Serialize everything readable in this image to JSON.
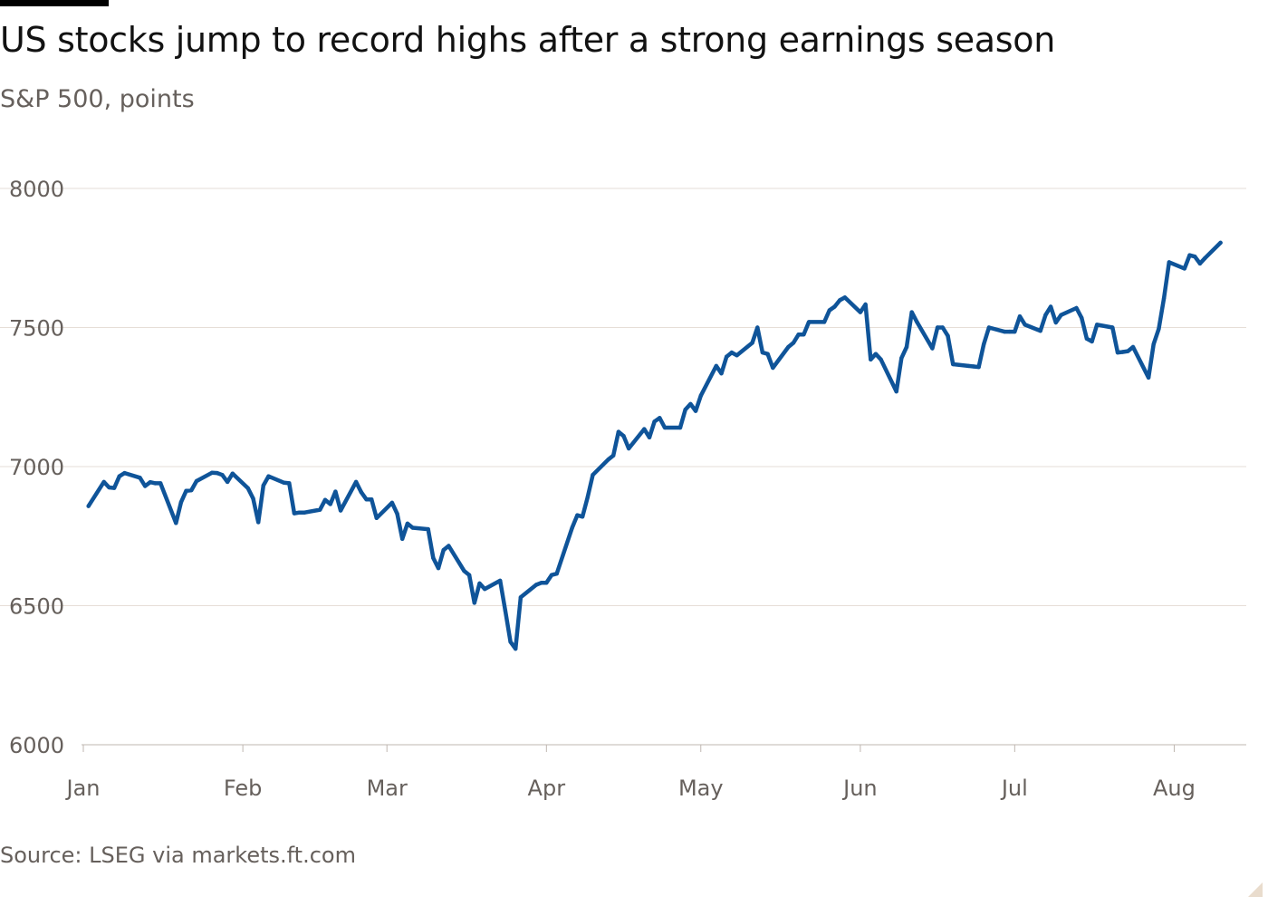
{
  "header": {
    "title": "US stocks jump to record highs after a strong earnings season",
    "subtitle": "S&P 500, points"
  },
  "footer": {
    "source": "Source: LSEG via markets.ft.com"
  },
  "colors": {
    "line": "#0f5499",
    "grid": "#e6ded7",
    "axis_text": "#66605c",
    "title_text": "#121212"
  },
  "chart_data": {
    "type": "line",
    "title": "US stocks jump to record highs after a strong earnings season",
    "subtitle": "S&P 500, points",
    "ylim": [
      6000,
      8000
    ],
    "yticks": [
      6000,
      6500,
      7000,
      7500,
      8000
    ],
    "xlim": [
      "2026-01-01",
      "2026-08-15"
    ],
    "xticks": [
      {
        "label": "Jan",
        "date": "2026-01-01"
      },
      {
        "label": "Feb",
        "date": "2026-02-01"
      },
      {
        "label": "Mar",
        "date": "2026-03-01"
      },
      {
        "label": "Apr",
        "date": "2026-04-01"
      },
      {
        "label": "May",
        "date": "2026-05-01"
      },
      {
        "label": "Jun",
        "date": "2026-06-01"
      },
      {
        "label": "Jul",
        "date": "2026-07-01"
      },
      {
        "label": "Aug",
        "date": "2026-08-01"
      }
    ],
    "grid": "horizontal",
    "legend": "none",
    "series": [
      {
        "points": [
          [
            "2026-01-02",
            6858
          ],
          [
            "2026-01-05",
            6945
          ],
          [
            "2026-01-06",
            6925
          ],
          [
            "2026-01-07",
            6923
          ],
          [
            "2026-01-08",
            6965
          ],
          [
            "2026-01-09",
            6977
          ],
          [
            "2026-01-12",
            6960
          ],
          [
            "2026-01-13",
            6930
          ],
          [
            "2026-01-14",
            6944
          ],
          [
            "2026-01-15",
            6940
          ],
          [
            "2026-01-16",
            6940
          ],
          [
            "2026-01-19",
            6797
          ],
          [
            "2026-01-20",
            6872
          ],
          [
            "2026-01-21",
            6913
          ],
          [
            "2026-01-22",
            6915
          ],
          [
            "2026-01-23",
            6948
          ],
          [
            "2026-01-26",
            6978
          ],
          [
            "2026-01-27",
            6977
          ],
          [
            "2026-01-28",
            6970
          ],
          [
            "2026-01-29",
            6945
          ],
          [
            "2026-01-30",
            6975
          ],
          [
            "2026-02-02",
            6922
          ],
          [
            "2026-02-03",
            6885
          ],
          [
            "2026-02-04",
            6800
          ],
          [
            "2026-02-05",
            6932
          ],
          [
            "2026-02-06",
            6965
          ],
          [
            "2026-02-09",
            6942
          ],
          [
            "2026-02-10",
            6940
          ],
          [
            "2026-02-11",
            6832
          ],
          [
            "2026-02-12",
            6835
          ],
          [
            "2026-02-13",
            6835
          ],
          [
            "2026-02-16",
            6845
          ],
          [
            "2026-02-17",
            6880
          ],
          [
            "2026-02-18",
            6865
          ],
          [
            "2026-02-19",
            6910
          ],
          [
            "2026-02-20",
            6842
          ],
          [
            "2026-02-23",
            6945
          ],
          [
            "2026-02-24",
            6908
          ],
          [
            "2026-02-25",
            6882
          ],
          [
            "2026-02-26",
            6882
          ],
          [
            "2026-02-27",
            6815
          ],
          [
            "2026-03-02",
            6870
          ],
          [
            "2026-03-03",
            6830
          ],
          [
            "2026-03-04",
            6740
          ],
          [
            "2026-03-05",
            6795
          ],
          [
            "2026-03-06",
            6780
          ],
          [
            "2026-03-09",
            6775
          ],
          [
            "2026-03-10",
            6672
          ],
          [
            "2026-03-11",
            6635
          ],
          [
            "2026-03-12",
            6700
          ],
          [
            "2026-03-13",
            6715
          ],
          [
            "2026-03-16",
            6625
          ],
          [
            "2026-03-17",
            6610
          ],
          [
            "2026-03-18",
            6510
          ],
          [
            "2026-03-19",
            6580
          ],
          [
            "2026-03-20",
            6560
          ],
          [
            "2026-03-23",
            6590
          ],
          [
            "2026-03-24",
            6482
          ],
          [
            "2026-03-25",
            6370
          ],
          [
            "2026-03-26",
            6345
          ],
          [
            "2026-03-27",
            6530
          ],
          [
            "2026-03-30",
            6575
          ],
          [
            "2026-03-31",
            6582
          ],
          [
            "2026-04-01",
            6582
          ],
          [
            "2026-04-02",
            6610
          ],
          [
            "2026-04-03",
            6615
          ],
          [
            "2026-04-06",
            6780
          ],
          [
            "2026-04-07",
            6825
          ],
          [
            "2026-04-08",
            6820
          ],
          [
            "2026-04-09",
            6890
          ],
          [
            "2026-04-10",
            6970
          ],
          [
            "2026-04-13",
            7025
          ],
          [
            "2026-04-14",
            7040
          ],
          [
            "2026-04-15",
            7125
          ],
          [
            "2026-04-16",
            7110
          ],
          [
            "2026-04-17",
            7065
          ],
          [
            "2026-04-20",
            7135
          ],
          [
            "2026-04-21",
            7105
          ],
          [
            "2026-04-22",
            7162
          ],
          [
            "2026-04-23",
            7175
          ],
          [
            "2026-04-24",
            7140
          ],
          [
            "2026-04-27",
            7140
          ],
          [
            "2026-04-28",
            7205
          ],
          [
            "2026-04-29",
            7225
          ],
          [
            "2026-04-30",
            7200
          ],
          [
            "2026-05-01",
            7255
          ],
          [
            "2026-05-04",
            7362
          ],
          [
            "2026-05-05",
            7335
          ],
          [
            "2026-05-06",
            7395
          ],
          [
            "2026-05-07",
            7410
          ],
          [
            "2026-05-08",
            7400
          ],
          [
            "2026-05-11",
            7445
          ],
          [
            "2026-05-12",
            7500
          ],
          [
            "2026-05-13",
            7410
          ],
          [
            "2026-05-14",
            7405
          ],
          [
            "2026-05-15",
            7355
          ],
          [
            "2026-05-18",
            7430
          ],
          [
            "2026-05-19",
            7445
          ],
          [
            "2026-05-20",
            7475
          ],
          [
            "2026-05-21",
            7475
          ],
          [
            "2026-05-22",
            7520
          ],
          [
            "2026-05-25",
            7520
          ],
          [
            "2026-05-26",
            7562
          ],
          [
            "2026-05-27",
            7575
          ],
          [
            "2026-05-28",
            7598
          ],
          [
            "2026-05-29",
            7608
          ],
          [
            "2026-06-01",
            7555
          ],
          [
            "2026-06-02",
            7583
          ],
          [
            "2026-06-03",
            7385
          ],
          [
            "2026-06-04",
            7405
          ],
          [
            "2026-06-05",
            7385
          ],
          [
            "2026-06-08",
            7270
          ],
          [
            "2026-06-09",
            7390
          ],
          [
            "2026-06-10",
            7430
          ],
          [
            "2026-06-11",
            7555
          ],
          [
            "2026-06-12",
            7520
          ],
          [
            "2026-06-15",
            7425
          ],
          [
            "2026-06-16",
            7500
          ],
          [
            "2026-06-17",
            7500
          ],
          [
            "2026-06-18",
            7470
          ],
          [
            "2026-06-19",
            7368
          ],
          [
            "2026-06-22",
            7362
          ],
          [
            "2026-06-23",
            7360
          ],
          [
            "2026-06-24",
            7358
          ],
          [
            "2026-06-25",
            7440
          ],
          [
            "2026-06-26",
            7500
          ],
          [
            "2026-06-29",
            7485
          ],
          [
            "2026-06-30",
            7485
          ],
          [
            "2026-07-01",
            7485
          ],
          [
            "2026-07-02",
            7540
          ],
          [
            "2026-07-03",
            7510
          ],
          [
            "2026-07-06",
            7488
          ],
          [
            "2026-07-07",
            7545
          ],
          [
            "2026-07-08",
            7575
          ],
          [
            "2026-07-09",
            7518
          ],
          [
            "2026-07-10",
            7545
          ],
          [
            "2026-07-13",
            7570
          ],
          [
            "2026-07-14",
            7535
          ],
          [
            "2026-07-15",
            7460
          ],
          [
            "2026-07-16",
            7450
          ],
          [
            "2026-07-17",
            7510
          ],
          [
            "2026-07-20",
            7500
          ],
          [
            "2026-07-21",
            7410
          ],
          [
            "2026-07-22",
            7412
          ],
          [
            "2026-07-23",
            7415
          ],
          [
            "2026-07-24",
            7430
          ],
          [
            "2026-07-27",
            7320
          ],
          [
            "2026-07-28",
            7440
          ],
          [
            "2026-07-29",
            7495
          ],
          [
            "2026-07-30",
            7605
          ],
          [
            "2026-07-31",
            7735
          ],
          [
            "2026-08-03",
            7712
          ],
          [
            "2026-08-04",
            7760
          ],
          [
            "2026-08-05",
            7755
          ],
          [
            "2026-08-06",
            7730
          ],
          [
            "2026-08-07",
            7750
          ],
          [
            "2026-08-10",
            7805
          ]
        ]
      }
    ]
  }
}
